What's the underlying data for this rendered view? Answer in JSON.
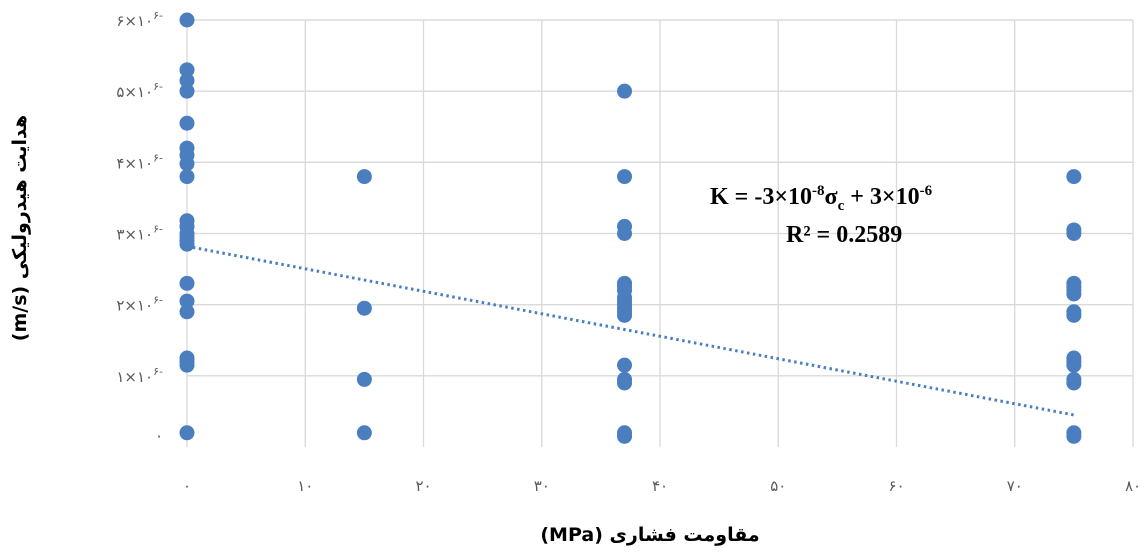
{
  "chart_data": {
    "type": "scatter",
    "xlabel": "مقاومت فشاری (MPa)",
    "ylabel": "هدایت هیدرولیکی (m/s)",
    "xlim": [
      0,
      80
    ],
    "ylim": [
      0,
      6e-06
    ],
    "x_ticks": [
      {
        "value": 0,
        "label": "۰"
      },
      {
        "value": 10,
        "label": "۱۰"
      },
      {
        "value": 20,
        "label": "۲۰"
      },
      {
        "value": 30,
        "label": "۳۰"
      },
      {
        "value": 40,
        "label": "۴۰"
      },
      {
        "value": 50,
        "label": "۵۰"
      },
      {
        "value": 60,
        "label": "۶۰"
      },
      {
        "value": 70,
        "label": "۷۰"
      },
      {
        "value": 80,
        "label": "۸۰"
      }
    ],
    "y_ticks": [
      {
        "value": 0,
        "label": "۰",
        "exp": ""
      },
      {
        "value": 1e-06,
        "label": "۱×۱۰",
        "exp": "۶-"
      },
      {
        "value": 2e-06,
        "label": "۲×۱۰",
        "exp": "۶-"
      },
      {
        "value": 3e-06,
        "label": "۳×۱۰",
        "exp": "۶-"
      },
      {
        "value": 4e-06,
        "label": "۴×۱۰",
        "exp": "۶-"
      },
      {
        "value": 5e-06,
        "label": "۵×۱۰",
        "exp": "۶-"
      },
      {
        "value": 6e-06,
        "label": "۶×۱۰",
        "exp": "۶-"
      }
    ],
    "grid": true,
    "series": [
      {
        "color": "#4a7ebf",
        "points": [
          [
            0,
            6e-06
          ],
          [
            0,
            5.3e-06
          ],
          [
            0,
            5.15e-06
          ],
          [
            0,
            5e-06
          ],
          [
            0,
            4.55e-06
          ],
          [
            0,
            4.2e-06
          ],
          [
            0,
            4.1e-06
          ],
          [
            0,
            3.98e-06
          ],
          [
            0,
            3.8e-06
          ],
          [
            0,
            3.18e-06
          ],
          [
            0,
            3.1e-06
          ],
          [
            0,
            3e-06
          ],
          [
            0,
            2.95e-06
          ],
          [
            0,
            2.9e-06
          ],
          [
            0,
            2.85e-06
          ],
          [
            0,
            2.3e-06
          ],
          [
            0,
            2.05e-06
          ],
          [
            0,
            1.9e-06
          ],
          [
            0,
            1.25e-06
          ],
          [
            0,
            1.2e-06
          ],
          [
            0,
            1.15e-06
          ],
          [
            0,
            2e-07
          ],
          [
            15,
            3.8e-06
          ],
          [
            15,
            1.95e-06
          ],
          [
            15,
            9.5e-07
          ],
          [
            15,
            2e-07
          ],
          [
            37,
            5e-06
          ],
          [
            37,
            3.8e-06
          ],
          [
            37,
            3.1e-06
          ],
          [
            37,
            3e-06
          ],
          [
            37,
            2.3e-06
          ],
          [
            37,
            2.25e-06
          ],
          [
            37,
            2.2e-06
          ],
          [
            37,
            2.1e-06
          ],
          [
            37,
            2.05e-06
          ],
          [
            37,
            2e-06
          ],
          [
            37,
            1.95e-06
          ],
          [
            37,
            1.9e-06
          ],
          [
            37,
            1.85e-06
          ],
          [
            37,
            1.15e-06
          ],
          [
            37,
            9.5e-07
          ],
          [
            37,
            9e-07
          ],
          [
            37,
            2e-07
          ],
          [
            37,
            1.5e-07
          ],
          [
            75,
            3.8e-06
          ],
          [
            75,
            3.05e-06
          ],
          [
            75,
            3e-06
          ],
          [
            75,
            2.3e-06
          ],
          [
            75,
            2.25e-06
          ],
          [
            75,
            2.2e-06
          ],
          [
            75,
            2.15e-06
          ],
          [
            75,
            1.9e-06
          ],
          [
            75,
            1.85e-06
          ],
          [
            75,
            1.25e-06
          ],
          [
            75,
            1.2e-06
          ],
          [
            75,
            1.15e-06
          ],
          [
            75,
            9.5e-07
          ],
          [
            75,
            9e-07
          ],
          [
            75,
            2e-07
          ],
          [
            75,
            1.5e-07
          ]
        ]
      }
    ],
    "trendline": {
      "type": "linear",
      "x_start": 0,
      "y_start": 2.82e-06,
      "x_end": 75,
      "y_end": 4.5e-07,
      "style": "dotted"
    },
    "equation": {
      "lead": "K = -3×10",
      "exp1": "-8",
      "sigma": "σ",
      "sub": "c",
      "mid": " + 3×10",
      "exp2": "-6",
      "r2": "R² = 0.2589"
    }
  }
}
